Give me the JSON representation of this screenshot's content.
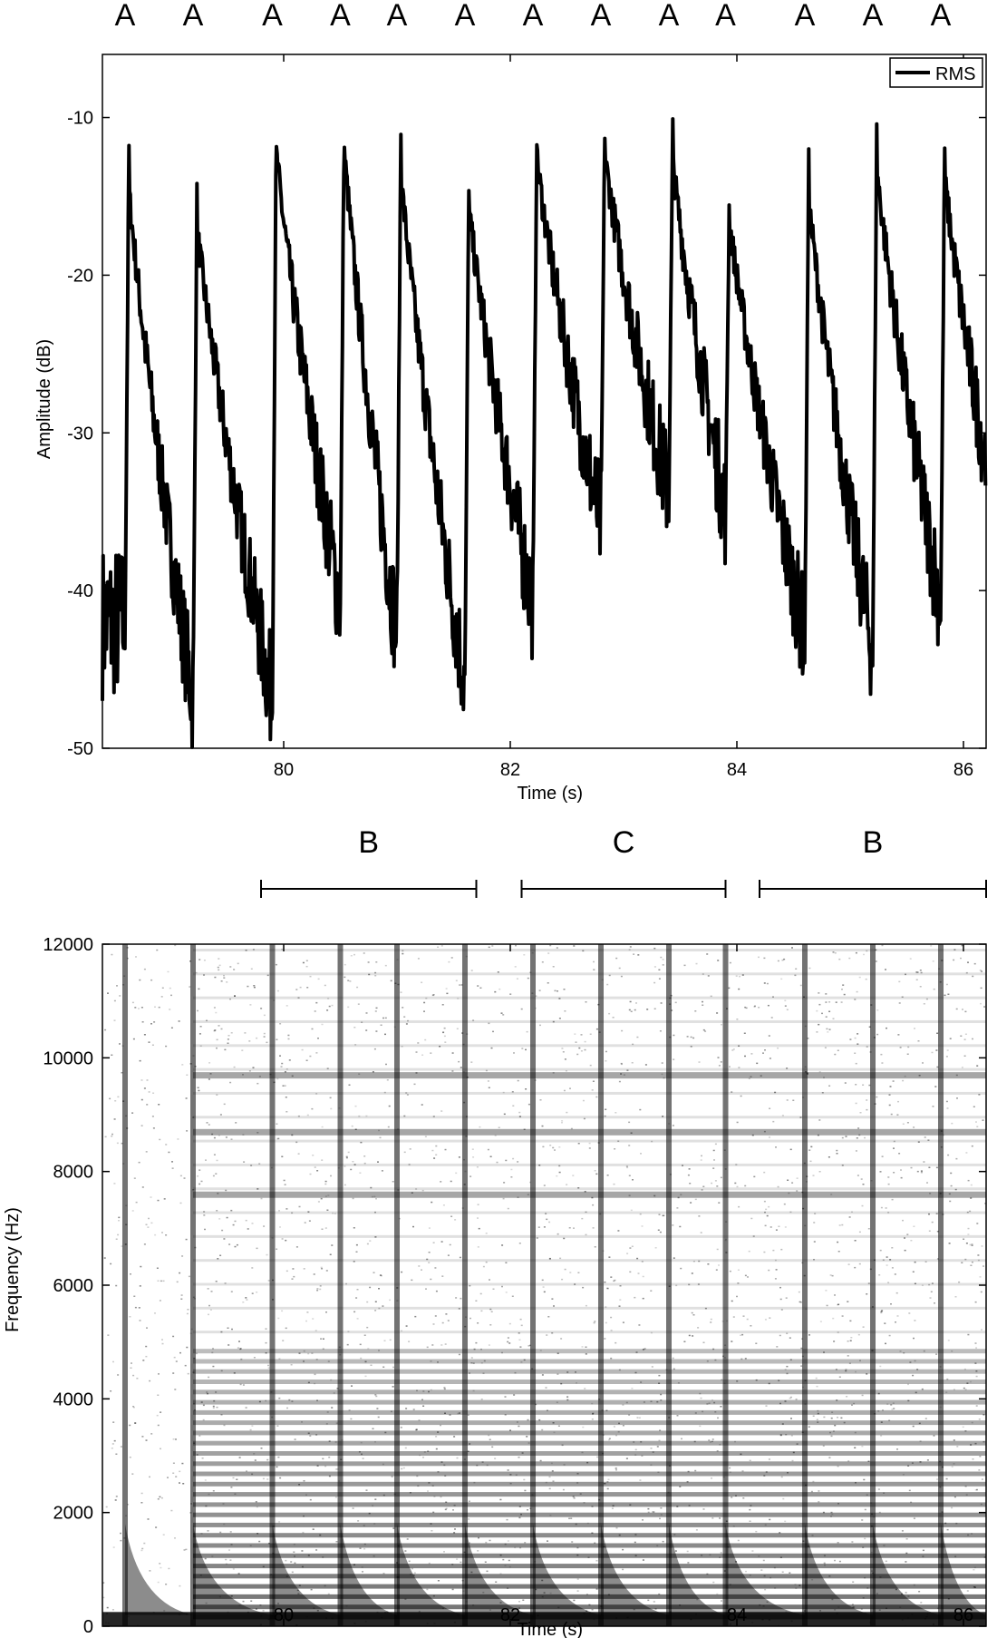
{
  "chart_data": [
    {
      "type": "line",
      "ylabel": "Amplitude (dB)",
      "xlabel": "Time (s)",
      "xlim": [
        78.4,
        86.2
      ],
      "ylim": [
        -50,
        -6
      ],
      "xticks": [
        "80",
        "82",
        "84",
        "86"
      ],
      "xtick_values": [
        80,
        82,
        84,
        86
      ],
      "yticks": [
        "-10",
        "-20",
        "-30",
        "-40",
        "-50"
      ],
      "ytick_values": [
        -10,
        -20,
        -30,
        -40,
        -50
      ],
      "legend": {
        "entries": [
          "RMS"
        ],
        "placement": "top-right"
      },
      "grid": false,
      "onset_markers": {
        "labels": [
          "A",
          "A",
          "A",
          "A",
          "A",
          "A",
          "A",
          "A",
          "A",
          "A",
          "A",
          "A",
          "A"
        ],
        "times": [
          78.6,
          79.2,
          79.9,
          80.5,
          81.0,
          81.6,
          82.2,
          82.8,
          83.4,
          83.9,
          84.6,
          85.2,
          85.8
        ]
      },
      "series": [
        {
          "name": "RMS",
          "color": "#000000",
          "onsets": [
            {
              "t": 78.6,
              "peak": -11,
              "end": -47
            },
            {
              "t": 79.2,
              "peak": -14,
              "end": -47
            },
            {
              "t": 79.9,
              "peak": -9,
              "end": -41
            },
            {
              "t": 80.5,
              "peak": -8,
              "end": -43
            },
            {
              "t": 81.0,
              "peak": -10,
              "end": -46
            },
            {
              "t": 81.6,
              "peak": -13,
              "end": -41
            },
            {
              "t": 82.2,
              "peak": -10,
              "end": -36
            },
            {
              "t": 82.8,
              "peak": -10,
              "end": -34
            },
            {
              "t": 83.4,
              "peak": -10,
              "end": -35
            },
            {
              "t": 83.9,
              "peak": -14,
              "end": -43
            },
            {
              "t": 84.6,
              "peak": -12,
              "end": -44
            },
            {
              "t": 85.2,
              "peak": -10,
              "end": -41
            },
            {
              "t": 85.8,
              "peak": -11,
              "end": -36
            }
          ],
          "start_level": -42
        }
      ]
    },
    {
      "type": "heatmap",
      "ylabel": "Frequency (Hz)",
      "xlabel": "Time (s)",
      "xlim": [
        78.4,
        86.2
      ],
      "ylim": [
        0,
        12000
      ],
      "xticks": [
        "80",
        "82",
        "84",
        "86"
      ],
      "xtick_values": [
        80,
        82,
        84,
        86
      ],
      "yticks": [
        "0",
        "2000",
        "4000",
        "6000",
        "8000",
        "10000",
        "12000"
      ],
      "ytick_values": [
        0,
        2000,
        4000,
        6000,
        8000,
        10000,
        12000
      ],
      "colormap": "grayscale",
      "sections": [
        {
          "label": "B",
          "start": 79.8,
          "end": 81.7
        },
        {
          "label": "C",
          "start": 82.1,
          "end": 83.9
        },
        {
          "label": "B",
          "start": 84.2,
          "end": 86.2
        }
      ],
      "onsets": [
        78.6,
        79.2,
        79.9,
        80.5,
        81.0,
        81.6,
        82.2,
        82.8,
        83.4,
        83.9,
        84.6,
        85.2,
        85.8
      ],
      "harmonic_bands_hz": [
        7600,
        8700,
        9700
      ],
      "dense_band_below_hz": 5000
    }
  ]
}
